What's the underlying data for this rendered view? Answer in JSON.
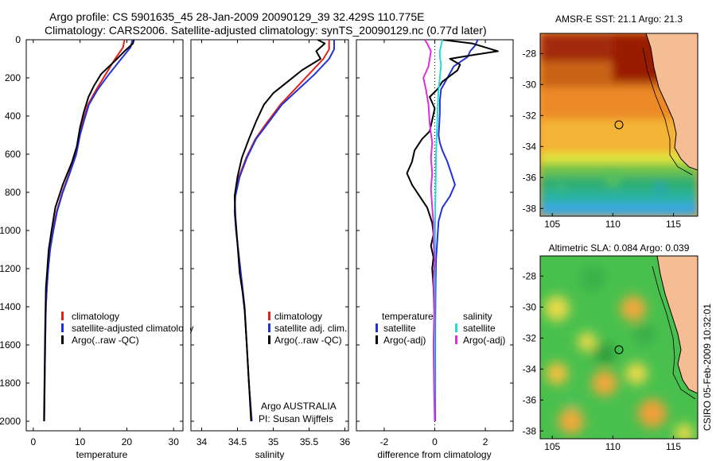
{
  "title": {
    "line1": "Argo profile: CS 5901635_45 28-Jan-2009 20090129_39 32.429S 110.775E",
    "line2": "Climatology: CARS2006. Satellite-adjusted climatology: synTS_20090129.nc (0.77d later)"
  },
  "footer": {
    "line1": "Argo AUSTRALIA",
    "line2": "PI: Susan Wijffels",
    "side": "CSIRO 05-Feb-2009 10:32:01"
  },
  "colors": {
    "climatology": "#e0241a",
    "satellite": "#2433d8",
    "argo": "#000000",
    "cyan": "#22dcdc",
    "magenta": "#dc2edc",
    "land": "#f5bd93"
  },
  "depth_axis": {
    "ylim": [
      0,
      2050
    ],
    "ticks": [
      "0",
      "200",
      "400",
      "600",
      "800",
      "1000",
      "1200",
      "1400",
      "1600",
      "1800",
      "2000"
    ]
  },
  "chart_data": [
    {
      "type": "line",
      "xlabel": "temperature",
      "xlim": [
        -1.5,
        32
      ],
      "xticks": [
        "0",
        "10",
        "20",
        "30"
      ],
      "legend": [
        "climatology",
        "satellite-adjusted climatology",
        "Argo(..raw -QC)"
      ],
      "series": [
        {
          "name": "climatology",
          "points": [
            [
              19.5,
              0
            ],
            [
              19.2,
              40
            ],
            [
              17.5,
              100
            ],
            [
              15.5,
              180
            ],
            [
              13.5,
              260
            ],
            [
              11.7,
              340
            ],
            [
              10.7,
              420
            ],
            [
              9.9,
              500
            ],
            [
              9.0,
              600
            ],
            [
              7.7,
              700
            ],
            [
              6.2,
              800
            ],
            [
              5.0,
              900
            ],
            [
              4.2,
              1000
            ],
            [
              3.6,
              1100
            ],
            [
              3.2,
              1200
            ],
            [
              2.9,
              1300
            ],
            [
              2.7,
              1400
            ],
            [
              2.55,
              1600
            ],
            [
              2.45,
              1800
            ],
            [
              2.35,
              2000
            ]
          ]
        },
        {
          "name": "satellite-adjusted climatology",
          "points": [
            [
              21.2,
              0
            ],
            [
              20.8,
              40
            ],
            [
              18.8,
              100
            ],
            [
              16.2,
              180
            ],
            [
              13.8,
              260
            ],
            [
              11.9,
              340
            ],
            [
              10.9,
              420
            ],
            [
              10.0,
              500
            ],
            [
              9.2,
              600
            ],
            [
              7.8,
              700
            ],
            [
              6.3,
              800
            ],
            [
              5.1,
              900
            ],
            [
              4.3,
              1000
            ],
            [
              3.6,
              1100
            ],
            [
              3.2,
              1200
            ],
            [
              2.9,
              1300
            ],
            [
              2.7,
              1400
            ],
            [
              2.55,
              1600
            ],
            [
              2.45,
              1800
            ],
            [
              2.35,
              2000
            ]
          ]
        },
        {
          "name": "Argo(..raw -QC)",
          "points": [
            [
              21.5,
              0
            ],
            [
              21.3,
              20
            ],
            [
              19.5,
              60
            ],
            [
              17.5,
              110
            ],
            [
              14.5,
              180
            ],
            [
              13.0,
              240
            ],
            [
              11.8,
              300
            ],
            [
              10.8,
              380
            ],
            [
              10.0,
              460
            ],
            [
              9.3,
              560
            ],
            [
              8.3,
              640
            ],
            [
              6.3,
              760
            ],
            [
              4.7,
              880
            ],
            [
              3.9,
              1000
            ],
            [
              3.3,
              1100
            ],
            [
              3.0,
              1200
            ],
            [
              2.7,
              1300
            ],
            [
              2.55,
              1500
            ],
            [
              2.45,
              1700
            ],
            [
              2.35,
              1900
            ],
            [
              2.3,
              2000
            ]
          ]
        }
      ]
    },
    {
      "type": "line",
      "xlabel": "salinity",
      "xlim": [
        33.85,
        36.05
      ],
      "xticks": [
        "34",
        "34.5",
        "35",
        "35.5",
        "36"
      ],
      "legend": [
        "climatology",
        "satellite adj. clim.",
        "Argo(..raw -QC)"
      ],
      "series": [
        {
          "name": "climatology",
          "points": [
            [
              35.78,
              0
            ],
            [
              35.78,
              50
            ],
            [
              35.7,
              100
            ],
            [
              35.5,
              180
            ],
            [
              35.3,
              260
            ],
            [
              35.1,
              340
            ],
            [
              34.9,
              440
            ],
            [
              34.75,
              520
            ],
            [
              34.62,
              620
            ],
            [
              34.52,
              720
            ],
            [
              34.47,
              820
            ],
            [
              34.46,
              900
            ],
            [
              34.48,
              1000
            ],
            [
              34.51,
              1100
            ],
            [
              34.54,
              1200
            ],
            [
              34.57,
              1300
            ],
            [
              34.6,
              1400
            ],
            [
              34.63,
              1600
            ],
            [
              34.66,
              1800
            ],
            [
              34.7,
              2000
            ]
          ]
        },
        {
          "name": "satellite adj. clim.",
          "points": [
            [
              35.85,
              0
            ],
            [
              35.85,
              50
            ],
            [
              35.78,
              100
            ],
            [
              35.58,
              180
            ],
            [
              35.35,
              260
            ],
            [
              35.12,
              340
            ],
            [
              34.92,
              440
            ],
            [
              34.76,
              520
            ],
            [
              34.63,
              620
            ],
            [
              34.53,
              720
            ],
            [
              34.47,
              820
            ],
            [
              34.46,
              900
            ],
            [
              34.48,
              1000
            ],
            [
              34.51,
              1100
            ],
            [
              34.54,
              1200
            ],
            [
              34.57,
              1300
            ],
            [
              34.6,
              1400
            ],
            [
              34.63,
              1600
            ],
            [
              34.66,
              1800
            ],
            [
              34.7,
              2000
            ]
          ]
        },
        {
          "name": "Argo(..raw -QC)",
          "points": [
            [
              35.62,
              0
            ],
            [
              35.72,
              20
            ],
            [
              35.6,
              60
            ],
            [
              35.66,
              100
            ],
            [
              35.4,
              160
            ],
            [
              35.2,
              220
            ],
            [
              35.0,
              280
            ],
            [
              34.87,
              340
            ],
            [
              34.77,
              420
            ],
            [
              34.66,
              520
            ],
            [
              34.56,
              620
            ],
            [
              34.5,
              720
            ],
            [
              34.46,
              820
            ],
            [
              34.47,
              920
            ],
            [
              34.49,
              1020
            ],
            [
              34.51,
              1120
            ],
            [
              34.53,
              1220
            ],
            [
              34.57,
              1320
            ],
            [
              34.6,
              1420
            ],
            [
              34.63,
              1600
            ],
            [
              34.66,
              1800
            ],
            [
              34.69,
              2000
            ]
          ]
        }
      ]
    },
    {
      "type": "line",
      "xlabel": "difference from climatology",
      "xlim": [
        -3.1,
        3.1
      ],
      "xticks": [
        "-2",
        "0",
        "2"
      ],
      "legend_titles": [
        "temperature",
        "salinity"
      ],
      "legend": [
        "satellite",
        "Argo(-adj)",
        "satellite",
        "Argo(-adj)"
      ],
      "series": [
        {
          "name": "satellite",
          "points": [
            [
              1.7,
              0
            ],
            [
              1.6,
              30
            ],
            [
              1.4,
              60
            ],
            [
              1.3,
              90
            ],
            [
              0.75,
              140
            ],
            [
              0.5,
              200
            ],
            [
              0.25,
              260
            ],
            [
              0.2,
              320
            ],
            [
              0.2,
              380
            ],
            [
              0.18,
              440
            ],
            [
              0.15,
              500
            ],
            [
              0.2,
              540
            ],
            [
              0.3,
              580
            ],
            [
              0.5,
              640
            ],
            [
              0.65,
              700
            ],
            [
              0.8,
              760
            ],
            [
              0.6,
              820
            ],
            [
              0.3,
              880
            ],
            [
              0.15,
              950
            ],
            [
              0.1,
              1050
            ],
            [
              0.05,
              1150
            ],
            [
              0.03,
              1300
            ],
            [
              0.02,
              1500
            ],
            [
              0.02,
              2000
            ]
          ]
        },
        {
          "name": "Argo(-adj)",
          "points": [
            [
              0.3,
              0
            ],
            [
              1.5,
              20
            ],
            [
              2.5,
              60
            ],
            [
              1.5,
              80
            ],
            [
              0.6,
              100
            ],
            [
              1.0,
              130
            ],
            [
              0.9,
              160
            ],
            [
              0.3,
              220
            ],
            [
              0.1,
              260
            ],
            [
              -0.2,
              300
            ],
            [
              0.0,
              360
            ],
            [
              -0.1,
              420
            ],
            [
              -0.2,
              480
            ],
            [
              -0.5,
              520
            ],
            [
              -0.8,
              580
            ],
            [
              -0.9,
              640
            ],
            [
              -1.1,
              700
            ],
            [
              -0.9,
              760
            ],
            [
              -0.6,
              820
            ],
            [
              -0.3,
              880
            ],
            [
              -0.1,
              960
            ],
            [
              -0.05,
              1020
            ],
            [
              -0.15,
              1080
            ],
            [
              -0.05,
              1140
            ],
            [
              -0.1,
              1200
            ],
            [
              -0.05,
              1300
            ],
            [
              0.0,
              1500
            ],
            [
              0.0,
              2000
            ]
          ]
        },
        {
          "name": "satellite",
          "points": [
            [
              0.3,
              0
            ],
            [
              0.25,
              30
            ],
            [
              0.2,
              60
            ],
            [
              0.2,
              90
            ],
            [
              0.25,
              130
            ],
            [
              0.2,
              200
            ],
            [
              0.15,
              260
            ],
            [
              0.12,
              340
            ],
            [
              0.1,
              420
            ],
            [
              0.08,
              500
            ],
            [
              0.05,
              600
            ],
            [
              0.04,
              700
            ],
            [
              0.03,
              800
            ],
            [
              0.02,
              900
            ],
            [
              0.01,
              1100
            ],
            [
              0.0,
              1300
            ],
            [
              0.0,
              1600
            ],
            [
              0.0,
              2000
            ]
          ]
        },
        {
          "name": "Argo(-adj)",
          "points": [
            [
              -0.4,
              0
            ],
            [
              -0.3,
              20
            ],
            [
              -0.15,
              60
            ],
            [
              -0.2,
              100
            ],
            [
              -0.25,
              140
            ],
            [
              -0.45,
              200
            ],
            [
              -0.35,
              260
            ],
            [
              -0.25,
              340
            ],
            [
              -0.2,
              440
            ],
            [
              -0.1,
              540
            ],
            [
              -0.15,
              620
            ],
            [
              -0.1,
              700
            ],
            [
              -0.15,
              780
            ],
            [
              -0.1,
              880
            ],
            [
              -0.05,
              960
            ],
            [
              -0.05,
              1060
            ],
            [
              0.0,
              1160
            ],
            [
              -0.05,
              1260
            ],
            [
              -0.02,
              1400
            ],
            [
              -0.05,
              1600
            ],
            [
              -0.03,
              1800
            ],
            [
              0.0,
              2000
            ]
          ]
        }
      ]
    }
  ],
  "maps": [
    {
      "title": "AMSR-E SST: 21.1 Argo: 21.3",
      "xticks": [
        "105",
        "110",
        "115"
      ],
      "yticks": [
        "-28",
        "-30",
        "-32",
        "-34",
        "-36",
        "-38"
      ]
    },
    {
      "title": "Altimetric SLA: 0.084 Argo: 0.039",
      "xticks": [
        "105",
        "110",
        "115"
      ],
      "yticks": [
        "-28",
        "-30",
        "-32",
        "-34",
        "-36",
        "-38"
      ]
    }
  ]
}
